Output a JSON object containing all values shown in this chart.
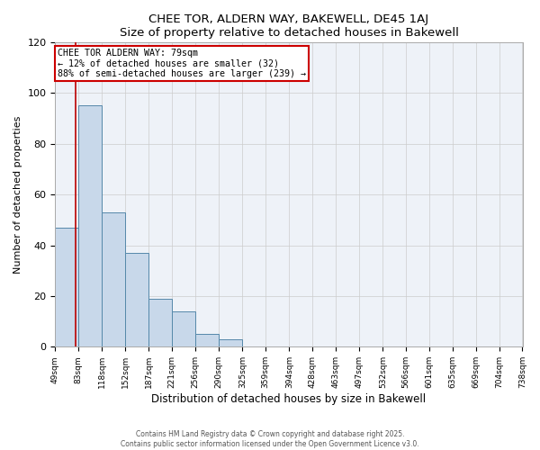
{
  "title": "CHEE TOR, ALDERN WAY, BAKEWELL, DE45 1AJ",
  "subtitle": "Size of property relative to detached houses in Bakewell",
  "xlabel": "Distribution of detached houses by size in Bakewell",
  "ylabel": "Number of detached properties",
  "bar_values": [
    47,
    95,
    53,
    37,
    19,
    14,
    5,
    3,
    0,
    0,
    0,
    0,
    0,
    0,
    0,
    0,
    0,
    0,
    0,
    0
  ],
  "bin_edges": [
    49,
    83,
    118,
    152,
    187,
    221,
    256,
    290,
    325,
    359,
    394,
    428,
    463,
    497,
    532,
    566,
    601,
    635,
    669,
    704,
    738
  ],
  "tick_labels": [
    "49sqm",
    "83sqm",
    "118sqm",
    "152sqm",
    "187sqm",
    "221sqm",
    "256sqm",
    "290sqm",
    "325sqm",
    "359sqm",
    "394sqm",
    "428sqm",
    "463sqm",
    "497sqm",
    "532sqm",
    "566sqm",
    "601sqm",
    "635sqm",
    "669sqm",
    "704sqm",
    "738sqm"
  ],
  "ylim": [
    0,
    120
  ],
  "yticks": [
    0,
    20,
    40,
    60,
    80,
    100,
    120
  ],
  "bar_color": "#c8d8ea",
  "bar_edge_color": "#5588aa",
  "grid_color": "#cccccc",
  "bg_color": "#eef2f8",
  "property_line_x": 79,
  "property_line_color": "#bb0000",
  "annotation_line1": "CHEE TOR ALDERN WAY: 79sqm",
  "annotation_line2": "← 12% of detached houses are smaller (32)",
  "annotation_line3": "88% of semi-detached houses are larger (239) →",
  "annotation_box_color": "#ffffff",
  "annotation_box_edge": "#cc0000",
  "footer_line1": "Contains HM Land Registry data © Crown copyright and database right 2025.",
  "footer_line2": "Contains public sector information licensed under the Open Government Licence v3.0.",
  "fig_bg_color": "#ffffff"
}
